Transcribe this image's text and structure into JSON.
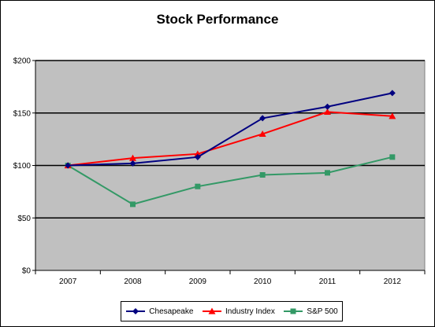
{
  "chart_data": {
    "type": "line",
    "title": "Stock Performance",
    "xlabel": "",
    "ylabel": "",
    "categories": [
      "2007",
      "2008",
      "2009",
      "2010",
      "2011",
      "2012"
    ],
    "ylim": [
      0,
      200
    ],
    "yticks": [
      0,
      50,
      100,
      150,
      200
    ],
    "ytick_labels": [
      "$0",
      "$50",
      "$100",
      "$150",
      "$200"
    ],
    "grid": "horizontal major gridlines",
    "plot_background": "#c0c0c0",
    "legend_position": "bottom",
    "series": [
      {
        "name": "Chesapeake",
        "color": "#000080",
        "marker": "diamond",
        "values": [
          100,
          102,
          108,
          145,
          156,
          169
        ]
      },
      {
        "name": "Industry Index",
        "color": "#ff0000",
        "marker": "triangle",
        "values": [
          100,
          107,
          111,
          130,
          151,
          147
        ]
      },
      {
        "name": "S&P 500",
        "color": "#339966",
        "marker": "square",
        "values": [
          100,
          63,
          80,
          91,
          93,
          108
        ]
      }
    ]
  }
}
